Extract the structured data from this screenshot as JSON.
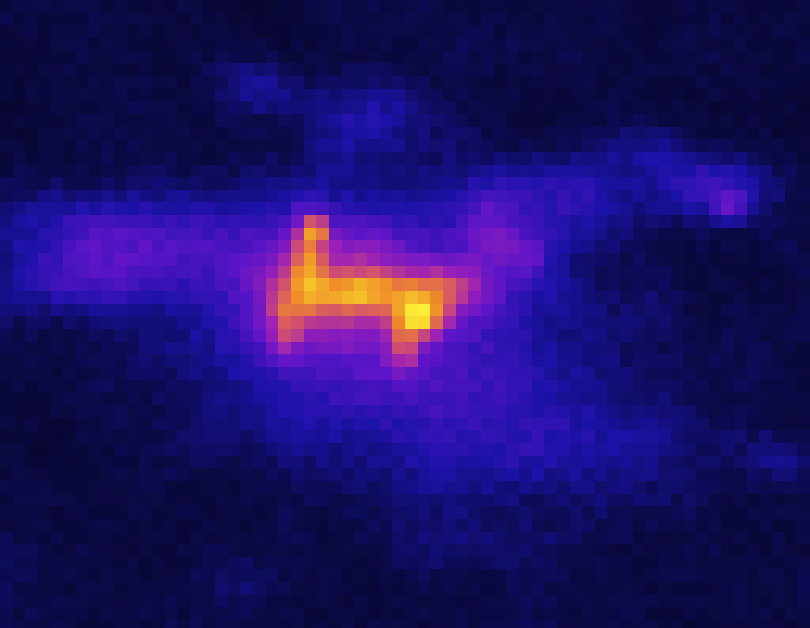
{
  "image": {
    "kind": "pixelated false-color heatmap",
    "colormap": "plasma-like",
    "colormap_stops": [
      "#05031a",
      "#0b0a4a",
      "#1c12a8",
      "#5a14c8",
      "#9a1fb8",
      "#d2506e",
      "#f08a2a",
      "#f5d02a",
      "#fff23a"
    ],
    "background_color": "#05031a"
  }
}
